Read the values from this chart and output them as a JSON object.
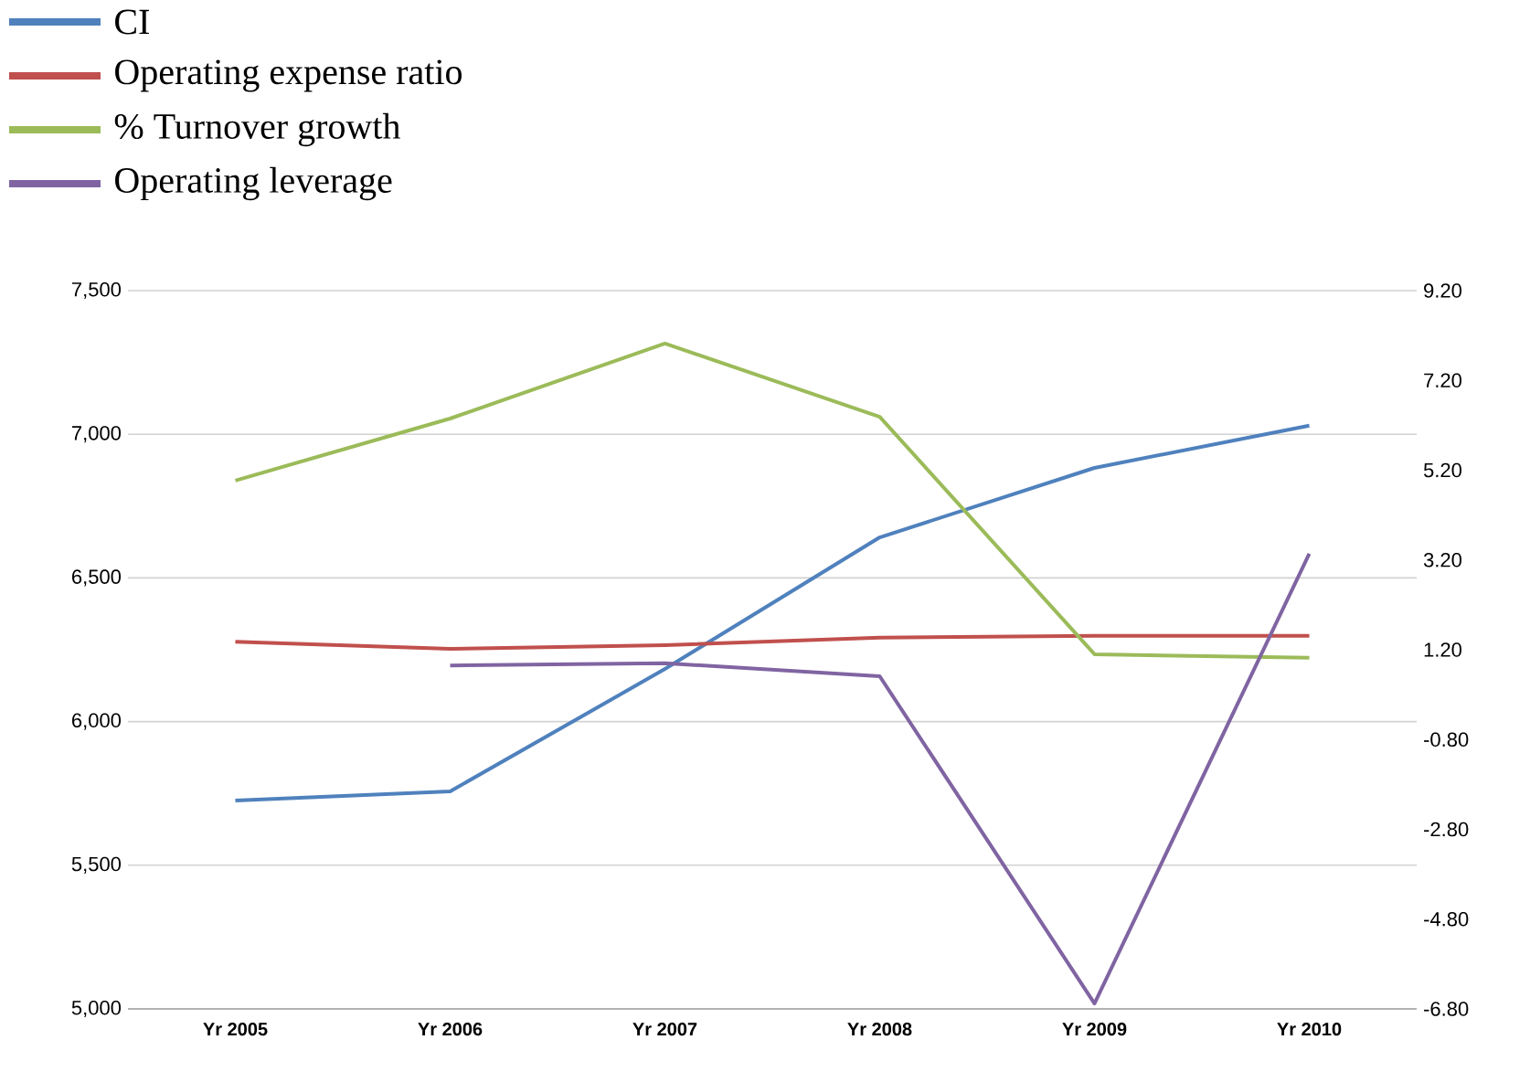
{
  "chart_data": {
    "type": "line",
    "categories": [
      "Yr 2005",
      "Yr 2006",
      "Yr 2007",
      "Yr 2008",
      "Yr 2009",
      "Yr 2010"
    ],
    "series": [
      {
        "name": "CI",
        "color": "#4f81bd",
        "values": [
          5725,
          5757,
          6183,
          6641,
          6883,
          7030
        ]
      },
      {
        "name": "Operating expense ratio",
        "color": "#c0504d",
        "axis": "y2",
        "values": [
          1.38,
          1.22,
          1.3,
          1.47,
          1.51,
          1.51
        ]
      },
      {
        "name": "% Turnover growth",
        "color": "#9bbb59",
        "axis": "y2",
        "values": [
          4.97,
          6.35,
          8.02,
          6.39,
          1.1,
          1.02
        ]
      },
      {
        "name": "Operating leverage",
        "color": "#8064a2",
        "axis": "y2",
        "values": [
          null,
          0.85,
          0.9,
          0.61,
          -6.68,
          3.34
        ]
      }
    ],
    "ylim": [
      5000,
      7500
    ],
    "yticks": [
      {
        "value": 5000,
        "label": "5,000"
      },
      {
        "value": 5500,
        "label": "5,500"
      },
      {
        "value": 6000,
        "label": "6,000"
      },
      {
        "value": 6500,
        "label": "6,500"
      },
      {
        "value": 7000,
        "label": "7,000"
      },
      {
        "value": 7500,
        "label": "7,500"
      }
    ],
    "y2lim": [
      -6.8,
      9.2
    ],
    "y2ticks": [
      {
        "value": -6.8,
        "label": "-6.80"
      },
      {
        "value": -4.8,
        "label": "-4.80"
      },
      {
        "value": -2.8,
        "label": "-2.80"
      },
      {
        "value": -0.8,
        "label": "-0.80"
      },
      {
        "value": 1.2,
        "label": "1.20"
      },
      {
        "value": 3.2,
        "label": "3.20"
      },
      {
        "value": 5.2,
        "label": "5.20"
      },
      {
        "value": 7.2,
        "label": "7.20"
      },
      {
        "value": 9.2,
        "label": "9.20"
      }
    ],
    "grid": "y",
    "legend": "top left"
  }
}
